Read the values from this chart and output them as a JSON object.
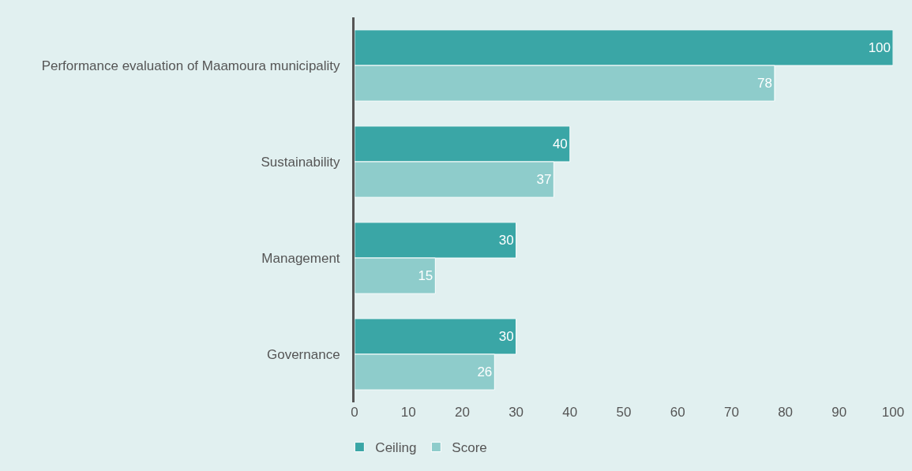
{
  "chart_data": {
    "type": "bar",
    "orientation": "horizontal",
    "categories": [
      "Performance evaluation of Maamoura municipality",
      "Sustainability",
      "Management",
      "Governance"
    ],
    "series": [
      {
        "name": "Ceiling",
        "color": "#3aa6a6",
        "values": [
          100,
          40,
          30,
          30
        ]
      },
      {
        "name": "Score",
        "color": "#8ecccb",
        "values": [
          78,
          37,
          15,
          26
        ]
      }
    ],
    "xlim": [
      0,
      100
    ],
    "xticks": [
      0,
      10,
      20,
      30,
      40,
      50,
      60,
      70,
      80,
      90,
      100
    ],
    "grid": false,
    "legend": "bottom",
    "data_labels": true
  }
}
